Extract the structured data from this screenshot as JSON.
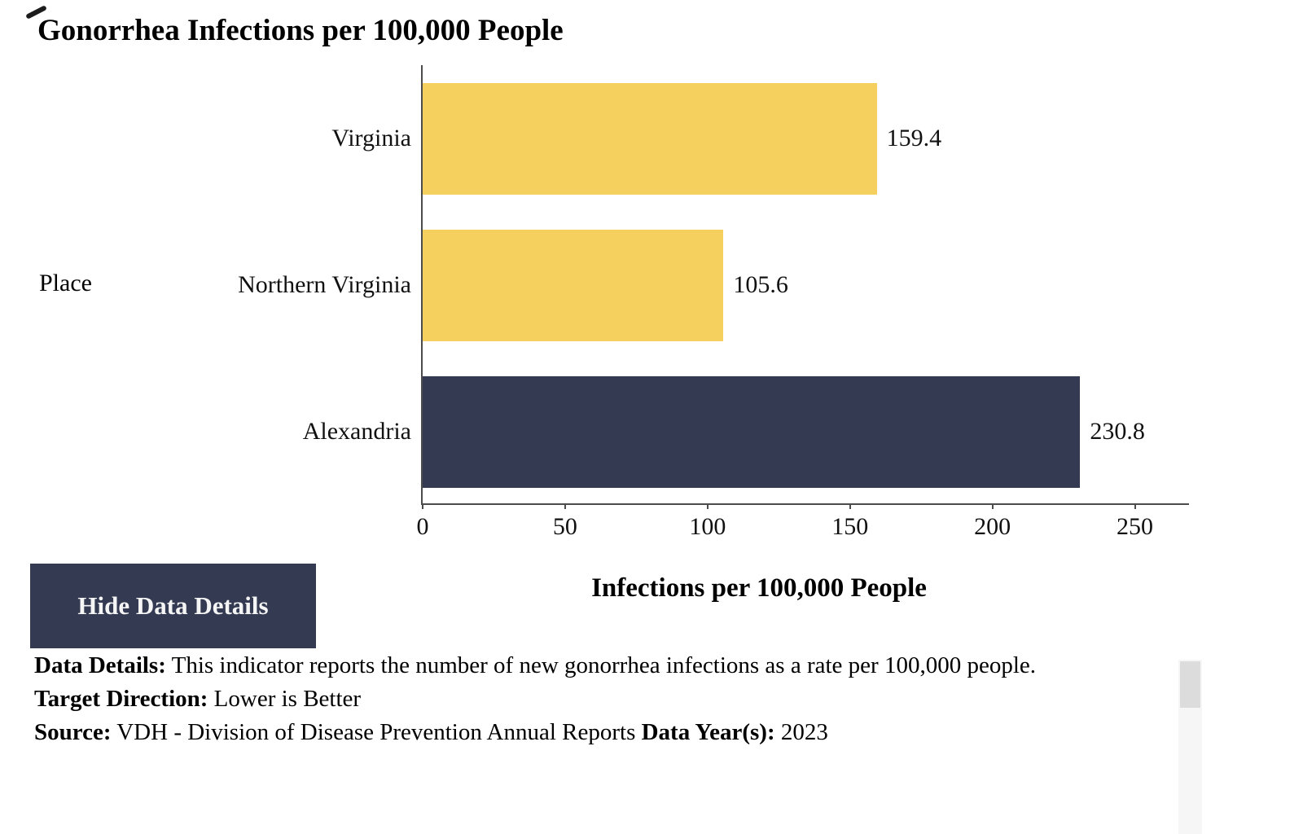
{
  "title": "Gonorrhea Infections per 100,000 People",
  "chart_data": {
    "type": "bar",
    "orientation": "horizontal",
    "title": "Gonorrhea Infections per 100,000 People",
    "categories": [
      "Virginia",
      "Northern Virginia",
      "Alexandria"
    ],
    "values": [
      159.4,
      105.6,
      230.8
    ],
    "value_labels": [
      "159.4",
      "105.6",
      "230.8"
    ],
    "bar_colors": [
      "#F5D05F",
      "#F5D05F",
      "#333A52"
    ],
    "xlabel": "Infections per 100,000 People",
    "ylabel": "Place",
    "xlim": [
      0,
      269
    ],
    "xticks": [
      0,
      50,
      100,
      150,
      200,
      250
    ],
    "grid": false,
    "legend": "none"
  },
  "button": {
    "label": "Hide Data Details"
  },
  "details": {
    "data_details_label": "Data Details:",
    "data_details_text": " This indicator reports the number of new gonorrhea infections as a rate per 100,000 people.",
    "target_direction_label": "Target Direction:",
    "target_direction_text": " Lower is Better",
    "source_label": "Source:",
    "source_text": " VDH - Division of Disease Prevention Annual Reports ",
    "data_years_label": "Data Year(s):",
    "data_years_value": " 2023"
  },
  "colors": {
    "bar_yellow": "#F5D05F",
    "bar_navy": "#333A52",
    "button_bg": "#333A52",
    "button_text": "#f5f5f5",
    "axis": "#4c4c4c",
    "scrollbar_track": "#f6f6f6",
    "scrollbar_thumb": "#dcdcdc"
  }
}
